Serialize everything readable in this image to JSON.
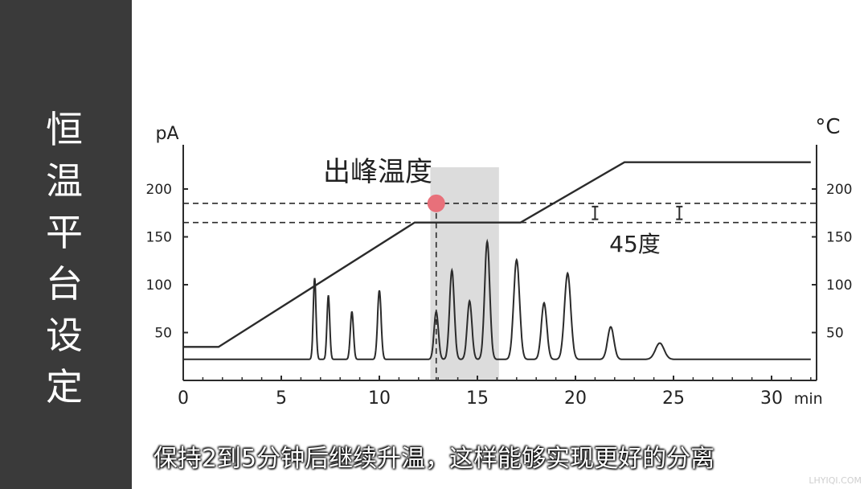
{
  "sidebar": {
    "title_chars": [
      "恒",
      "温",
      "平",
      "台",
      "设",
      "定"
    ]
  },
  "caption": "保持2到5分钟后继续升温，这样能够实现更好的分离",
  "watermark": "LHYIQI.COM",
  "colors": {
    "sidebar_bg": "#3a3a3a",
    "line": "#2b2b2b",
    "highlight": "#dcdcdc",
    "marker": "#e8707a"
  },
  "chart_data": {
    "type": "line",
    "y_left_unit": "pA",
    "y_right_unit": "°C",
    "x_unit": "min",
    "xlim": [
      0,
      32
    ],
    "ylim": [
      0,
      230
    ],
    "x_ticks": [
      0,
      5,
      10,
      15,
      20,
      25,
      30
    ],
    "x_tick_labels": [
      "0",
      "5",
      "10",
      "15",
      "20",
      "25",
      "30"
    ],
    "y_ticks": [
      50,
      100,
      150,
      200
    ],
    "y_tick_labels": [
      "50",
      "100",
      "150",
      "200"
    ],
    "y_right_ticks": [
      50,
      100,
      150,
      200
    ],
    "y_right_tick_labels": [
      "50",
      "100",
      "150",
      "200"
    ],
    "series": [
      {
        "role": "temperature_program",
        "x": [
          0,
          1.8,
          11.8,
          17.2,
          22.5,
          32
        ],
        "y": [
          35,
          35,
          165,
          165,
          228,
          228
        ]
      },
      {
        "role": "chromatogram",
        "baseline": 22,
        "peaks": [
          {
            "t": 6.7,
            "h": 107,
            "w": 0.07
          },
          {
            "t": 7.4,
            "h": 89,
            "w": 0.07
          },
          {
            "t": 8.6,
            "h": 72,
            "w": 0.08
          },
          {
            "t": 10.0,
            "h": 94,
            "w": 0.09
          },
          {
            "t": 12.9,
            "h": 72,
            "w": 0.11
          },
          {
            "t": 13.7,
            "h": 115,
            "w": 0.12
          },
          {
            "t": 14.6,
            "h": 83,
            "w": 0.12
          },
          {
            "t": 15.5,
            "h": 145,
            "w": 0.13
          },
          {
            "t": 17.0,
            "h": 126,
            "w": 0.15
          },
          {
            "t": 18.4,
            "h": 81,
            "w": 0.14
          },
          {
            "t": 19.6,
            "h": 112,
            "w": 0.16
          },
          {
            "t": 21.8,
            "h": 56,
            "w": 0.16
          },
          {
            "t": 24.3,
            "h": 39,
            "w": 0.22
          }
        ]
      }
    ],
    "shaded_region": {
      "x": [
        12.6,
        16.1
      ]
    },
    "reference_lines": {
      "y": [
        185,
        165
      ],
      "x": 12.9
    },
    "marker": {
      "x": 12.9,
      "y": 185
    },
    "annotations": {
      "peak_temperature": "出峰温度",
      "delta": "45度"
    }
  }
}
